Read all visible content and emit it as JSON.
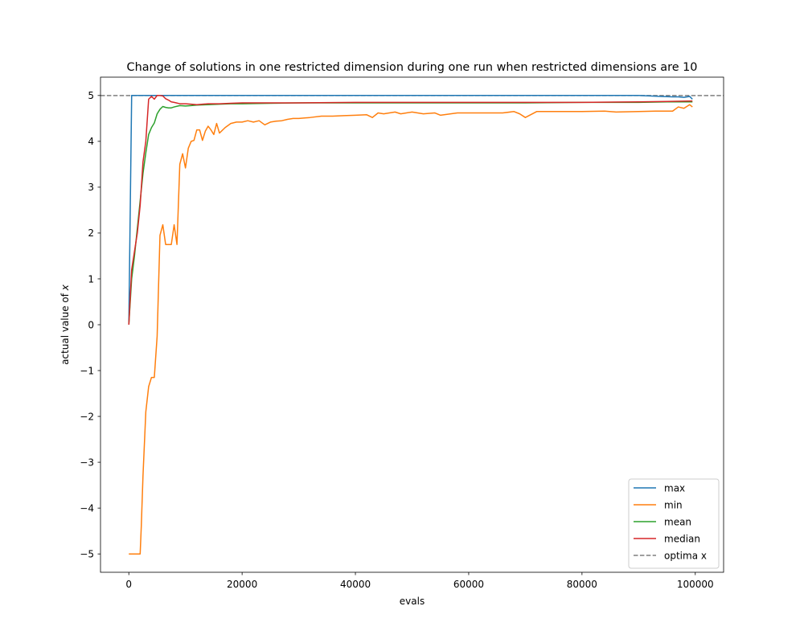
{
  "chart_data": {
    "type": "line",
    "title": "Change of solutions in one restricted dimension during one run when restricted dimensions are 10",
    "xlabel": "evals",
    "ylabel": "actual value of x",
    "ylabel_parts": {
      "prefix": "actual value of ",
      "var": "x"
    },
    "xlim": [
      -5000,
      105000
    ],
    "ylim": [
      -5.4,
      5.4
    ],
    "xticks": [
      0,
      20000,
      40000,
      60000,
      80000,
      100000
    ],
    "xtick_labels": [
      "0",
      "20000",
      "40000",
      "60000",
      "80000",
      "100000"
    ],
    "yticks": [
      -5,
      -4,
      -3,
      -2,
      -1,
      0,
      1,
      2,
      3,
      4,
      5
    ],
    "ytick_labels": [
      "−5",
      "−4",
      "−3",
      "−2",
      "−1",
      "0",
      "1",
      "2",
      "3",
      "4",
      "5"
    ],
    "legend_position": "lower-right",
    "grid": false,
    "hline": {
      "name": "optima x",
      "y": 5,
      "color": "#7f7f7f",
      "style": "dashed"
    },
    "series": [
      {
        "name": "max",
        "color": "#1f77b4",
        "x": [
          0,
          500,
          1000,
          50000,
          90000,
          92000,
          94000,
          96000,
          97000,
          98000,
          99000,
          99500
        ],
        "y": [
          0.0,
          5.0,
          5.0,
          5.0,
          5.0,
          4.99,
          4.98,
          4.97,
          4.97,
          4.96,
          4.98,
          4.92
        ]
      },
      {
        "name": "min",
        "color": "#ff7f0e",
        "x": [
          0,
          1000,
          2000,
          2200,
          2500,
          3000,
          3500,
          4000,
          4500,
          5000,
          5500,
          6000,
          6500,
          7000,
          7500,
          8000,
          8500,
          9000,
          9500,
          10000,
          10500,
          11000,
          11500,
          12000,
          12500,
          13000,
          13500,
          14000,
          14500,
          15000,
          15500,
          16000,
          17000,
          18000,
          19000,
          20000,
          21000,
          22000,
          23000,
          24000,
          25000,
          26000,
          27000,
          28000,
          29000,
          30000,
          32000,
          34000,
          36000,
          38000,
          40000,
          42000,
          43000,
          44000,
          45000,
          46000,
          47000,
          48000,
          49000,
          50000,
          52000,
          54000,
          55000,
          58000,
          62000,
          66000,
          68000,
          69000,
          70000,
          72000,
          76000,
          80000,
          84000,
          86000,
          90000,
          93000,
          96000,
          97000,
          98000,
          99000,
          99500
        ],
        "y": [
          -5.0,
          -5.0,
          -5.0,
          -4.4,
          -3.3,
          -1.9,
          -1.35,
          -1.15,
          -1.15,
          -0.25,
          1.95,
          2.18,
          1.75,
          1.75,
          1.75,
          2.18,
          1.75,
          3.5,
          3.73,
          3.42,
          3.85,
          4.0,
          4.02,
          4.25,
          4.25,
          4.02,
          4.22,
          4.33,
          4.25,
          4.15,
          4.39,
          4.18,
          4.3,
          4.39,
          4.42,
          4.42,
          4.45,
          4.42,
          4.45,
          4.36,
          4.42,
          4.44,
          4.45,
          4.48,
          4.5,
          4.5,
          4.52,
          4.55,
          4.55,
          4.56,
          4.57,
          4.58,
          4.52,
          4.62,
          4.6,
          4.62,
          4.64,
          4.6,
          4.62,
          4.64,
          4.6,
          4.62,
          4.57,
          4.62,
          4.62,
          4.62,
          4.65,
          4.6,
          4.52,
          4.65,
          4.65,
          4.65,
          4.66,
          4.64,
          4.65,
          4.66,
          4.66,
          4.75,
          4.72,
          4.8,
          4.75
        ]
      },
      {
        "name": "mean",
        "color": "#2ca02c",
        "x": [
          0,
          500,
          1000,
          1500,
          2000,
          2500,
          3000,
          3500,
          4000,
          4500,
          5000,
          5500,
          6000,
          6500,
          7000,
          7500,
          8000,
          9000,
          10000,
          11000,
          12000,
          14000,
          16000,
          18000,
          20000,
          25000,
          30000,
          40000,
          50000,
          60000,
          70000,
          80000,
          90000,
          95000,
          99500
        ],
        "y": [
          0.0,
          1.0,
          1.5,
          2.1,
          2.7,
          3.3,
          3.75,
          4.15,
          4.3,
          4.4,
          4.6,
          4.7,
          4.76,
          4.74,
          4.73,
          4.73,
          4.75,
          4.78,
          4.77,
          4.78,
          4.79,
          4.8,
          4.81,
          4.82,
          4.82,
          4.83,
          4.84,
          4.84,
          4.84,
          4.84,
          4.84,
          4.85,
          4.85,
          4.86,
          4.86
        ]
      },
      {
        "name": "median",
        "color": "#d62728",
        "x": [
          0,
          500,
          1000,
          1500,
          2000,
          2500,
          3000,
          3500,
          4000,
          4500,
          5000,
          5500,
          6000,
          6500,
          7000,
          7500,
          8000,
          9000,
          10000,
          11000,
          12000,
          14000,
          16000,
          18000,
          20000,
          25000,
          30000,
          40000,
          50000,
          60000,
          70000,
          80000,
          90000,
          95000,
          99500
        ],
        "y": [
          0.0,
          1.2,
          1.6,
          2.0,
          2.6,
          3.55,
          4.0,
          4.92,
          4.98,
          4.92,
          5.0,
          5.0,
          4.99,
          4.93,
          4.9,
          4.86,
          4.85,
          4.82,
          4.82,
          4.81,
          4.8,
          4.82,
          4.82,
          4.83,
          4.84,
          4.84,
          4.84,
          4.85,
          4.85,
          4.85,
          4.85,
          4.85,
          4.86,
          4.87,
          4.88
        ]
      }
    ]
  }
}
